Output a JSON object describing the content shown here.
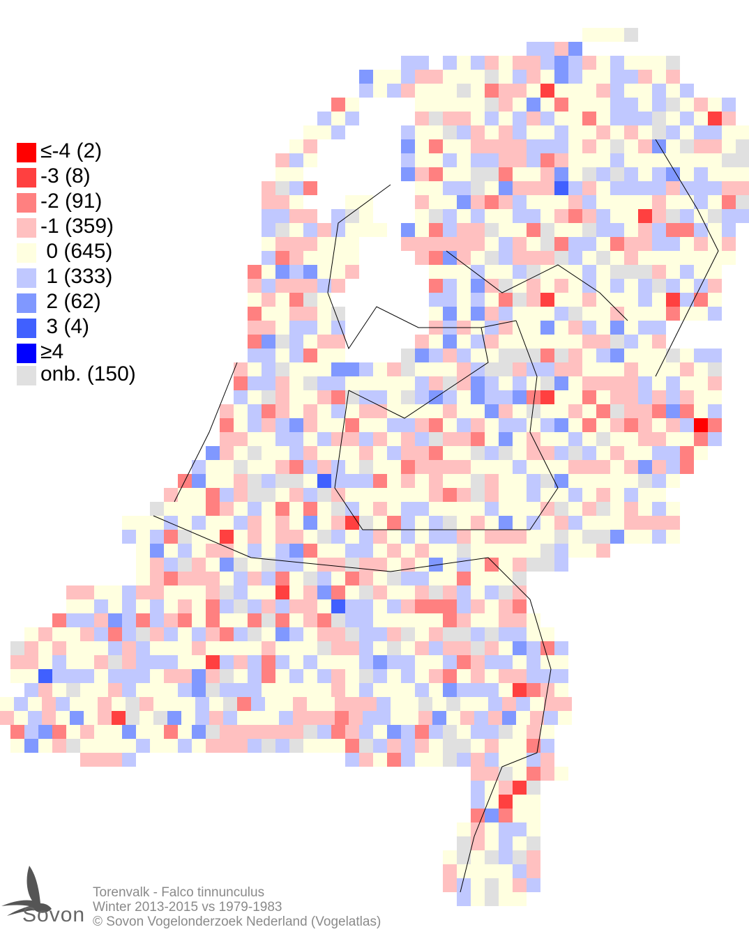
{
  "map": {
    "legend": [
      {
        "label": "≤-4 (2)",
        "value": "≤-4",
        "count": 2,
        "color": "#ff0000"
      },
      {
        "label": "-3 (8)",
        "value": "-3",
        "count": 8,
        "color": "#ff4040"
      },
      {
        "label": "-2 (91)",
        "value": "-2",
        "count": 91,
        "color": "#ff8080"
      },
      {
        "label": "-1 (359)",
        "value": "-1",
        "count": 359,
        "color": "#ffc0c0"
      },
      {
        "label": " 0 (645)",
        "value": "0",
        "count": 645,
        "color": "#ffffe0"
      },
      {
        "label": " 1 (333)",
        "value": "1",
        "count": 333,
        "color": "#c0c8ff"
      },
      {
        "label": " 2 (62)",
        "value": "2",
        "count": 62,
        "color": "#8098ff"
      },
      {
        "label": " 3 (4)",
        "value": "3",
        "count": 4,
        "color": "#4060ff"
      },
      {
        "label": "≥4",
        "value": "≥4",
        "count": 0,
        "color": "#0000ff"
      },
      {
        "label": "onb. (150)",
        "value": "onb.",
        "count": 150,
        "color": "#e0e0e0"
      }
    ]
  },
  "footer": {
    "species": "Torenvalk - Falco tinnunculus",
    "period": "Winter 2013-2015 vs 1979-1983",
    "copyright": "© Sovon Vogelonderzoek Nederland (Vogelatlas)"
  },
  "logo": {
    "text": "Sovon"
  }
}
